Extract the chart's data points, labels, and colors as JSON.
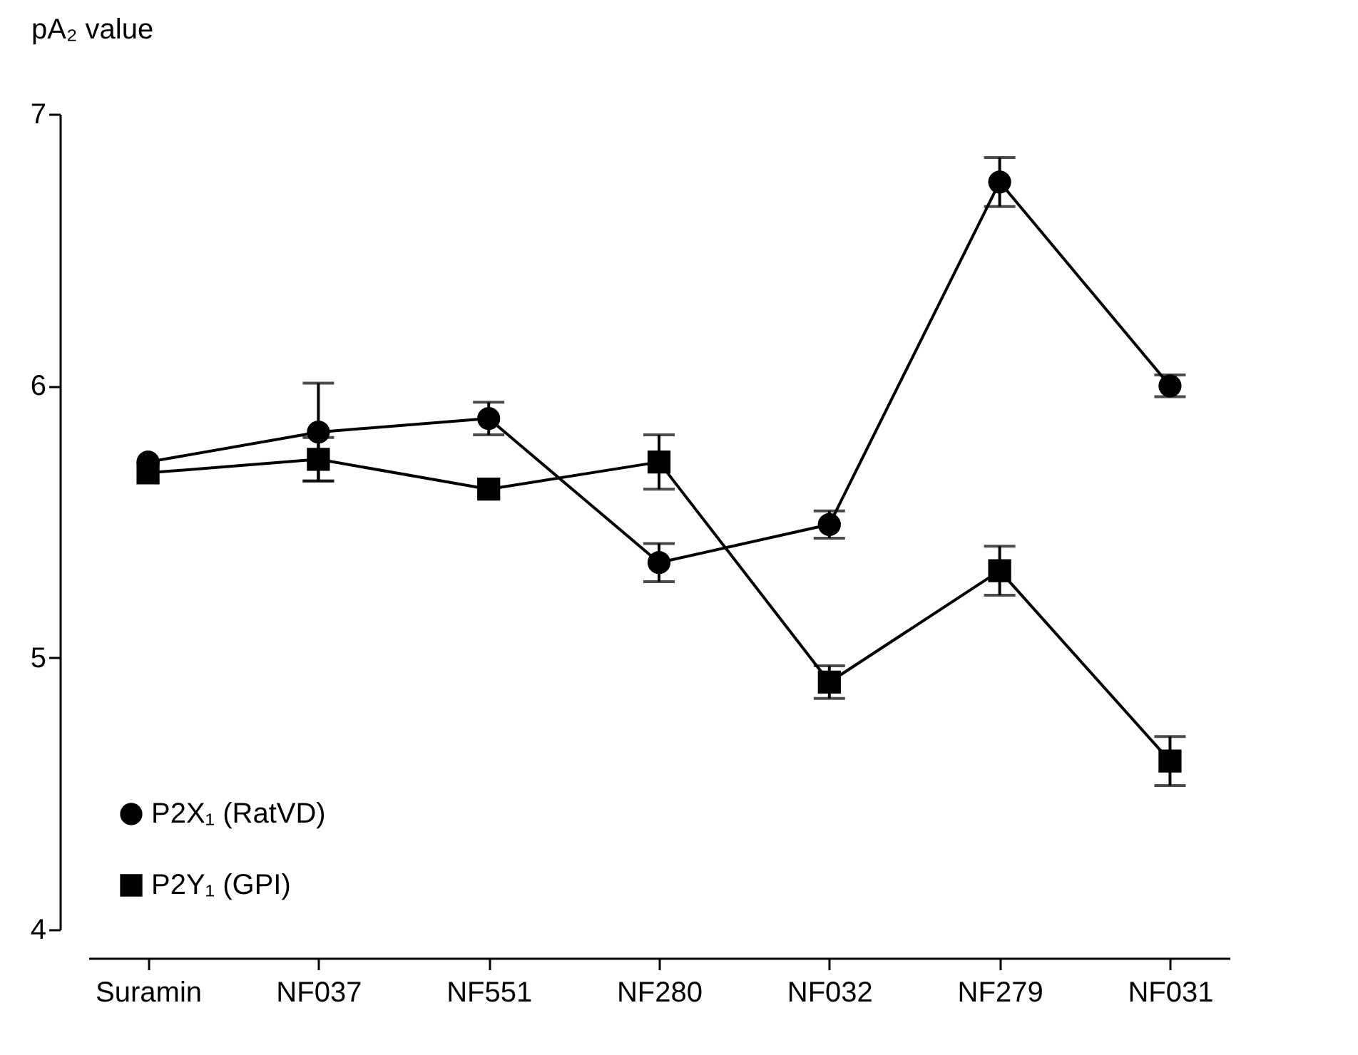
{
  "chart_data": {
    "type": "line",
    "ylabel": "pA₂ value",
    "categories": [
      "Suramin",
      "NF037",
      "NF551",
      "NF280",
      "NF032",
      "NF279",
      "NF031"
    ],
    "series": [
      {
        "name": "P2X₁ (RatVD)",
        "color": "#000000",
        "marker": "circle",
        "values": [
          5.72,
          5.83,
          5.88,
          5.35,
          5.49,
          6.75,
          6.0
        ],
        "errors": [
          null,
          0.18,
          0.06,
          0.07,
          0.05,
          0.09,
          0.04
        ]
      },
      {
        "name": "P2Y₁ (GPI)",
        "color": "#000000",
        "marker": "square",
        "values": [
          5.68,
          5.73,
          5.62,
          5.72,
          4.91,
          5.32,
          4.62
        ],
        "errors": [
          null,
          0.08,
          null,
          0.1,
          0.06,
          0.09,
          0.09
        ]
      }
    ],
    "ylim": [
      4,
      7
    ],
    "yticks": [
      4,
      5,
      6,
      7
    ],
    "grid": false,
    "legend": "bottom left",
    "line_style": "solid"
  }
}
